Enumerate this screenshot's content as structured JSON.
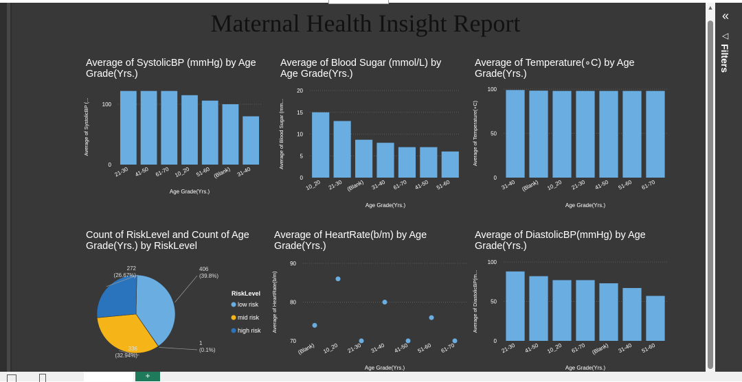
{
  "report": {
    "title": "Maternal Health Insight Report"
  },
  "filters": {
    "label": "Filters",
    "collapse_icon": "double-chevron-left-icon",
    "filter_icon": "funnel-icon"
  },
  "colors": {
    "bar": "#6aade0",
    "low_risk": "#6aade0",
    "mid_risk": "#f5b417",
    "high_risk": "#2a74bd",
    "background": "#383838"
  },
  "chart_data": [
    {
      "id": "systolic",
      "type": "bar",
      "title": "Average of SystolicBP (mmHg) by Age Grade(Yrs.)",
      "xlabel": "Age Grade(Yrs.)",
      "ylabel": "Average of SystolicBP (...",
      "categories": [
        "21-30",
        "41-50",
        "61-70",
        "10_20",
        "51-60",
        "(Blank)",
        "31-40"
      ],
      "values": [
        122,
        122,
        122,
        115,
        106,
        100,
        80
      ],
      "ylim": [
        0,
        125
      ],
      "yticks": [
        0,
        100
      ]
    },
    {
      "id": "bloodsugar",
      "type": "bar",
      "title": "Average of Blood Sugar (mmol/L) by Age Grade(Yrs.)",
      "xlabel": "Age Grade(Yrs.)",
      "ylabel": "Average of Blood Sugar (mm...",
      "categories": [
        "10_20",
        "21-30",
        "(Blank)",
        "31-40",
        "61-70",
        "41-50",
        "51-60"
      ],
      "values": [
        15,
        13,
        8.7,
        8,
        7,
        7,
        6
      ],
      "ylim": [
        0,
        20
      ],
      "yticks": [
        0,
        5,
        10,
        15,
        20
      ]
    },
    {
      "id": "temperature",
      "type": "bar",
      "title": "Average of Temperature(∘C) by Age Grade(Yrs.)",
      "xlabel": "Age Grade(Yrs.)",
      "ylabel": "Average of Temperature(∘C)",
      "categories": [
        "31-40",
        "(Blank)",
        "10_20",
        "21-30",
        "41-50",
        "51-60",
        "61-70"
      ],
      "values": [
        99,
        98.3,
        98,
        98,
        98,
        98,
        98
      ],
      "ylim": [
        0,
        100
      ],
      "yticks": [
        0,
        50,
        100
      ]
    },
    {
      "id": "risk",
      "type": "pie",
      "title": "Count of RiskLevel and Count of Age Grade(Yrs.) by RiskLevel",
      "legend_title": "RiskLevel",
      "slices": [
        {
          "name": "low risk",
          "value": 406,
          "label": "406",
          "pct": "(39.8%)"
        },
        {
          "name": "",
          "value": 1,
          "label": "1",
          "pct": "(0.1%)"
        },
        {
          "name": "mid risk",
          "value": 336,
          "label": "336",
          "pct": "(32.94%)"
        },
        {
          "name": "high risk",
          "value": 272,
          "label": "272",
          "pct": "(26.67%)"
        }
      ],
      "legend": [
        "low risk",
        "mid risk",
        "high risk"
      ]
    },
    {
      "id": "heartrate",
      "type": "scatter",
      "title": "Average of HeartRate(b/m) by Age Grade(Yrs.)",
      "xlabel": "Age Grade(Yrs.)",
      "ylabel": "Average of HeartRate(b/m)",
      "categories": [
        "(Blank)",
        "10_20",
        "21-30",
        "31-40",
        "41-50",
        "51-60",
        "61-70"
      ],
      "values": [
        74,
        86,
        70,
        80,
        70,
        76,
        70
      ],
      "ylim": [
        70,
        90
      ],
      "yticks": [
        70,
        80,
        90
      ]
    },
    {
      "id": "diastolic",
      "type": "bar",
      "title": "Average of DiastolicBP(mmHg) by Age Grade(Yrs.)",
      "xlabel": "Age Grade(Yrs.)",
      "ylabel": "Average of DiastolicBP(m...",
      "categories": [
        "21-30",
        "41-50",
        "10_20",
        "61-70",
        "(Blank)",
        "31-40",
        "51-60"
      ],
      "values": [
        88,
        82,
        77,
        77,
        73,
        67,
        57
      ],
      "ylim": [
        0,
        100
      ],
      "yticks": [
        0,
        50,
        100
      ]
    }
  ]
}
